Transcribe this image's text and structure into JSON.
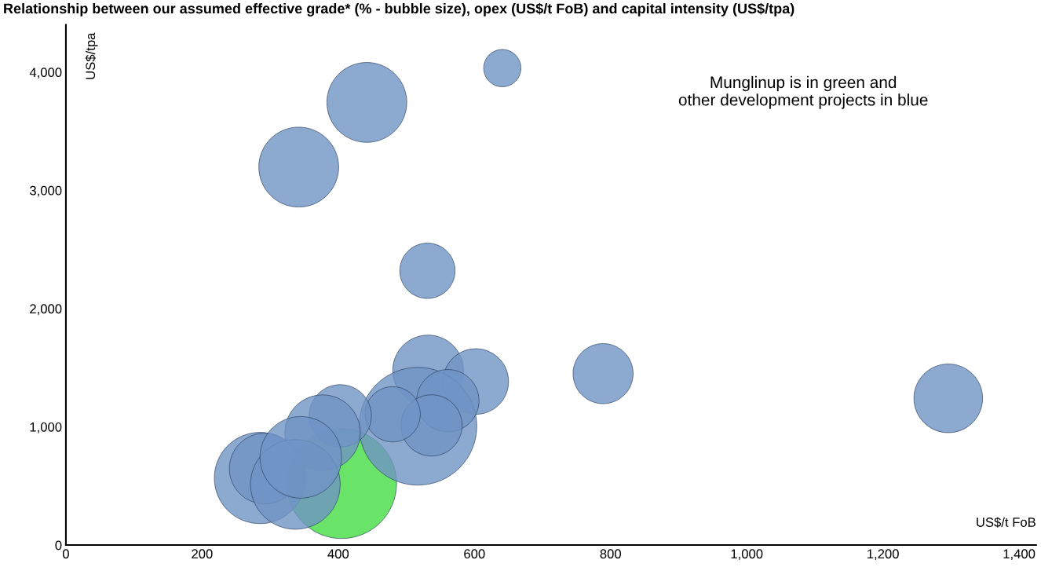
{
  "chart_data": {
    "type": "bubble",
    "title": "Relationship between our assumed effective grade* (% - bubble size), opex (US$/t FoB) and capital intensity (US$/tpa)",
    "xlabel": "US$/t FoB",
    "ylabel": "US$/tpa",
    "annotations": [
      "Munglinup is in green and\nother development projects in blue"
    ],
    "x": [
      405,
      442,
      342,
      641,
      531,
      789,
      1296,
      532,
      602,
      517,
      561,
      537,
      480,
      403,
      377,
      285,
      292,
      337,
      345
    ],
    "values": [
      520,
      3744,
      3197,
      4034,
      2320,
      1450,
      1241,
      1477,
      1383,
      1005,
      1221,
      1012,
      1106,
      1093,
      951,
      567,
      647,
      513,
      742
    ],
    "sizes": [
      0.87,
      0.46,
      0.46,
      0.1,
      0.22,
      0.26,
      0.34,
      0.36,
      0.31,
      1,
      0.28,
      0.27,
      0.22,
      0.28,
      0.41,
      0.6,
      0.36,
      0.58,
      0.48
    ],
    "colors": [
      "#44dd44",
      "#6f94c4",
      "#6f94c4",
      "#6f94c4",
      "#6f94c4",
      "#6f94c4",
      "#6f94c4",
      "#6f94c4",
      "#6f94c4",
      "#6f94c4",
      "#6f94c4",
      "#6f94c4",
      "#6f94c4",
      "#6f94c4",
      "#6f94c4",
      "#6f94c4",
      "#6f94c4",
      "#6f94c4",
      "#6f94c4"
    ],
    "xlim": [
      0,
      1425
    ],
    "ylim": [
      0,
      4400
    ],
    "xticks": [
      0,
      200,
      400,
      {
        "value": 600,
        "label": "600"
      },
      800,
      {
        "value": 1000,
        "label": "1,000"
      },
      {
        "value": 1200,
        "label": "1,200"
      },
      {
        "value": 1400,
        "label": "1,400"
      }
    ],
    "yticks": [
      0,
      {
        "value": 1000,
        "label": "1,000"
      },
      {
        "value": 2000,
        "label": "2,000"
      },
      {
        "value": 3000,
        "label": "3,000"
      },
      {
        "value": 4000,
        "label": "4,000"
      }
    ],
    "grid": false,
    "legend": false
  }
}
